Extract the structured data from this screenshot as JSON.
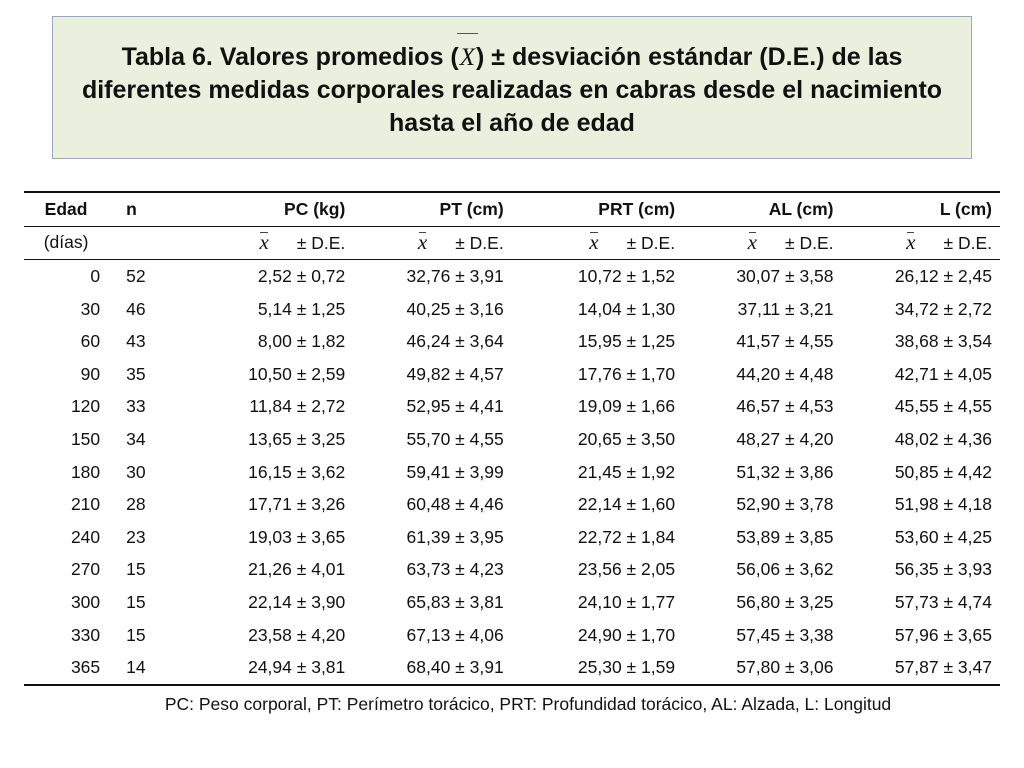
{
  "title": {
    "before": "Tabla 6. Valores promedios (",
    "symbol": "X",
    "after": ") ± desviación estándar (D.E.) de las diferentes medidas corporales realizadas en cabras desde el nacimiento hasta el año de edad"
  },
  "table": {
    "headers": [
      "Edad",
      "n",
      "PC (kg)",
      "PT (cm)",
      "PRT (cm)",
      "AL (cm)",
      "L (cm)"
    ],
    "subheader": {
      "edad_unit": "(días)",
      "mean_symbol": "x",
      "sd_label": "± D.E."
    },
    "rows": [
      [
        "0",
        "52",
        "2,52 ± 0,72",
        "32,76 ± 3,91",
        "10,72 ± 1,52",
        "30,07 ± 3,58",
        "26,12 ± 2,45"
      ],
      [
        "30",
        "46",
        "5,14 ± 1,25",
        "40,25 ± 3,16",
        "14,04 ± 1,30",
        "37,11 ± 3,21",
        "34,72 ± 2,72"
      ],
      [
        "60",
        "43",
        "8,00 ± 1,82",
        "46,24 ± 3,64",
        "15,95 ± 1,25",
        "41,57 ± 4,55",
        "38,68 ± 3,54"
      ],
      [
        "90",
        "35",
        "10,50 ± 2,59",
        "49,82 ± 4,57",
        "17,76 ± 1,70",
        "44,20 ± 4,48",
        "42,71 ± 4,05"
      ],
      [
        "120",
        "33",
        "11,84 ± 2,72",
        "52,95 ± 4,41",
        "19,09 ± 1,66",
        "46,57 ± 4,53",
        "45,55 ± 4,55"
      ],
      [
        "150",
        "34",
        "13,65 ± 3,25",
        "55,70 ± 4,55",
        "20,65 ± 3,50",
        "48,27 ± 4,20",
        "48,02 ± 4,36"
      ],
      [
        "180",
        "30",
        "16,15 ± 3,62",
        "59,41 ± 3,99",
        "21,45 ± 1,92",
        "51,32 ± 3,86",
        "50,85 ± 4,42"
      ],
      [
        "210",
        "28",
        "17,71 ± 3,26",
        "60,48 ± 4,46",
        "22,14 ± 1,60",
        "52,90 ± 3,78",
        "51,98 ± 4,18"
      ],
      [
        "240",
        "23",
        "19,03 ± 3,65",
        "61,39 ± 3,95",
        "22,72 ± 1,84",
        "53,89 ± 3,85",
        "53,60 ± 4,25"
      ],
      [
        "270",
        "15",
        "21,26 ± 4,01",
        "63,73 ± 4,23",
        "23,56 ± 2,05",
        "56,06 ± 3,62",
        "56,35 ± 3,93"
      ],
      [
        "300",
        "15",
        "22,14 ± 3,90",
        "65,83 ± 3,81",
        "24,10 ± 1,77",
        "56,80 ± 3,25",
        "57,73 ± 4,74"
      ],
      [
        "330",
        "15",
        "23,58 ± 4,20",
        "67,13 ± 4,06",
        "24,90 ± 1,70",
        "57,45 ± 3,38",
        "57,96 ± 3,65"
      ],
      [
        "365",
        "14",
        "24,94 ± 3,81",
        "68,40 ± 3,91",
        "25,30 ± 1,59",
        "57,80 ± 3,06",
        "57,87 ± 3,47"
      ]
    ]
  },
  "footnote": "PC: Peso corporal, PT: Perímetro torácico, PRT: Profundidad torácico, AL: Alzada, L: Longitud",
  "colors": {
    "title_background": "#ebf0de",
    "title_border": "#95a9c4",
    "text": "#111111"
  }
}
